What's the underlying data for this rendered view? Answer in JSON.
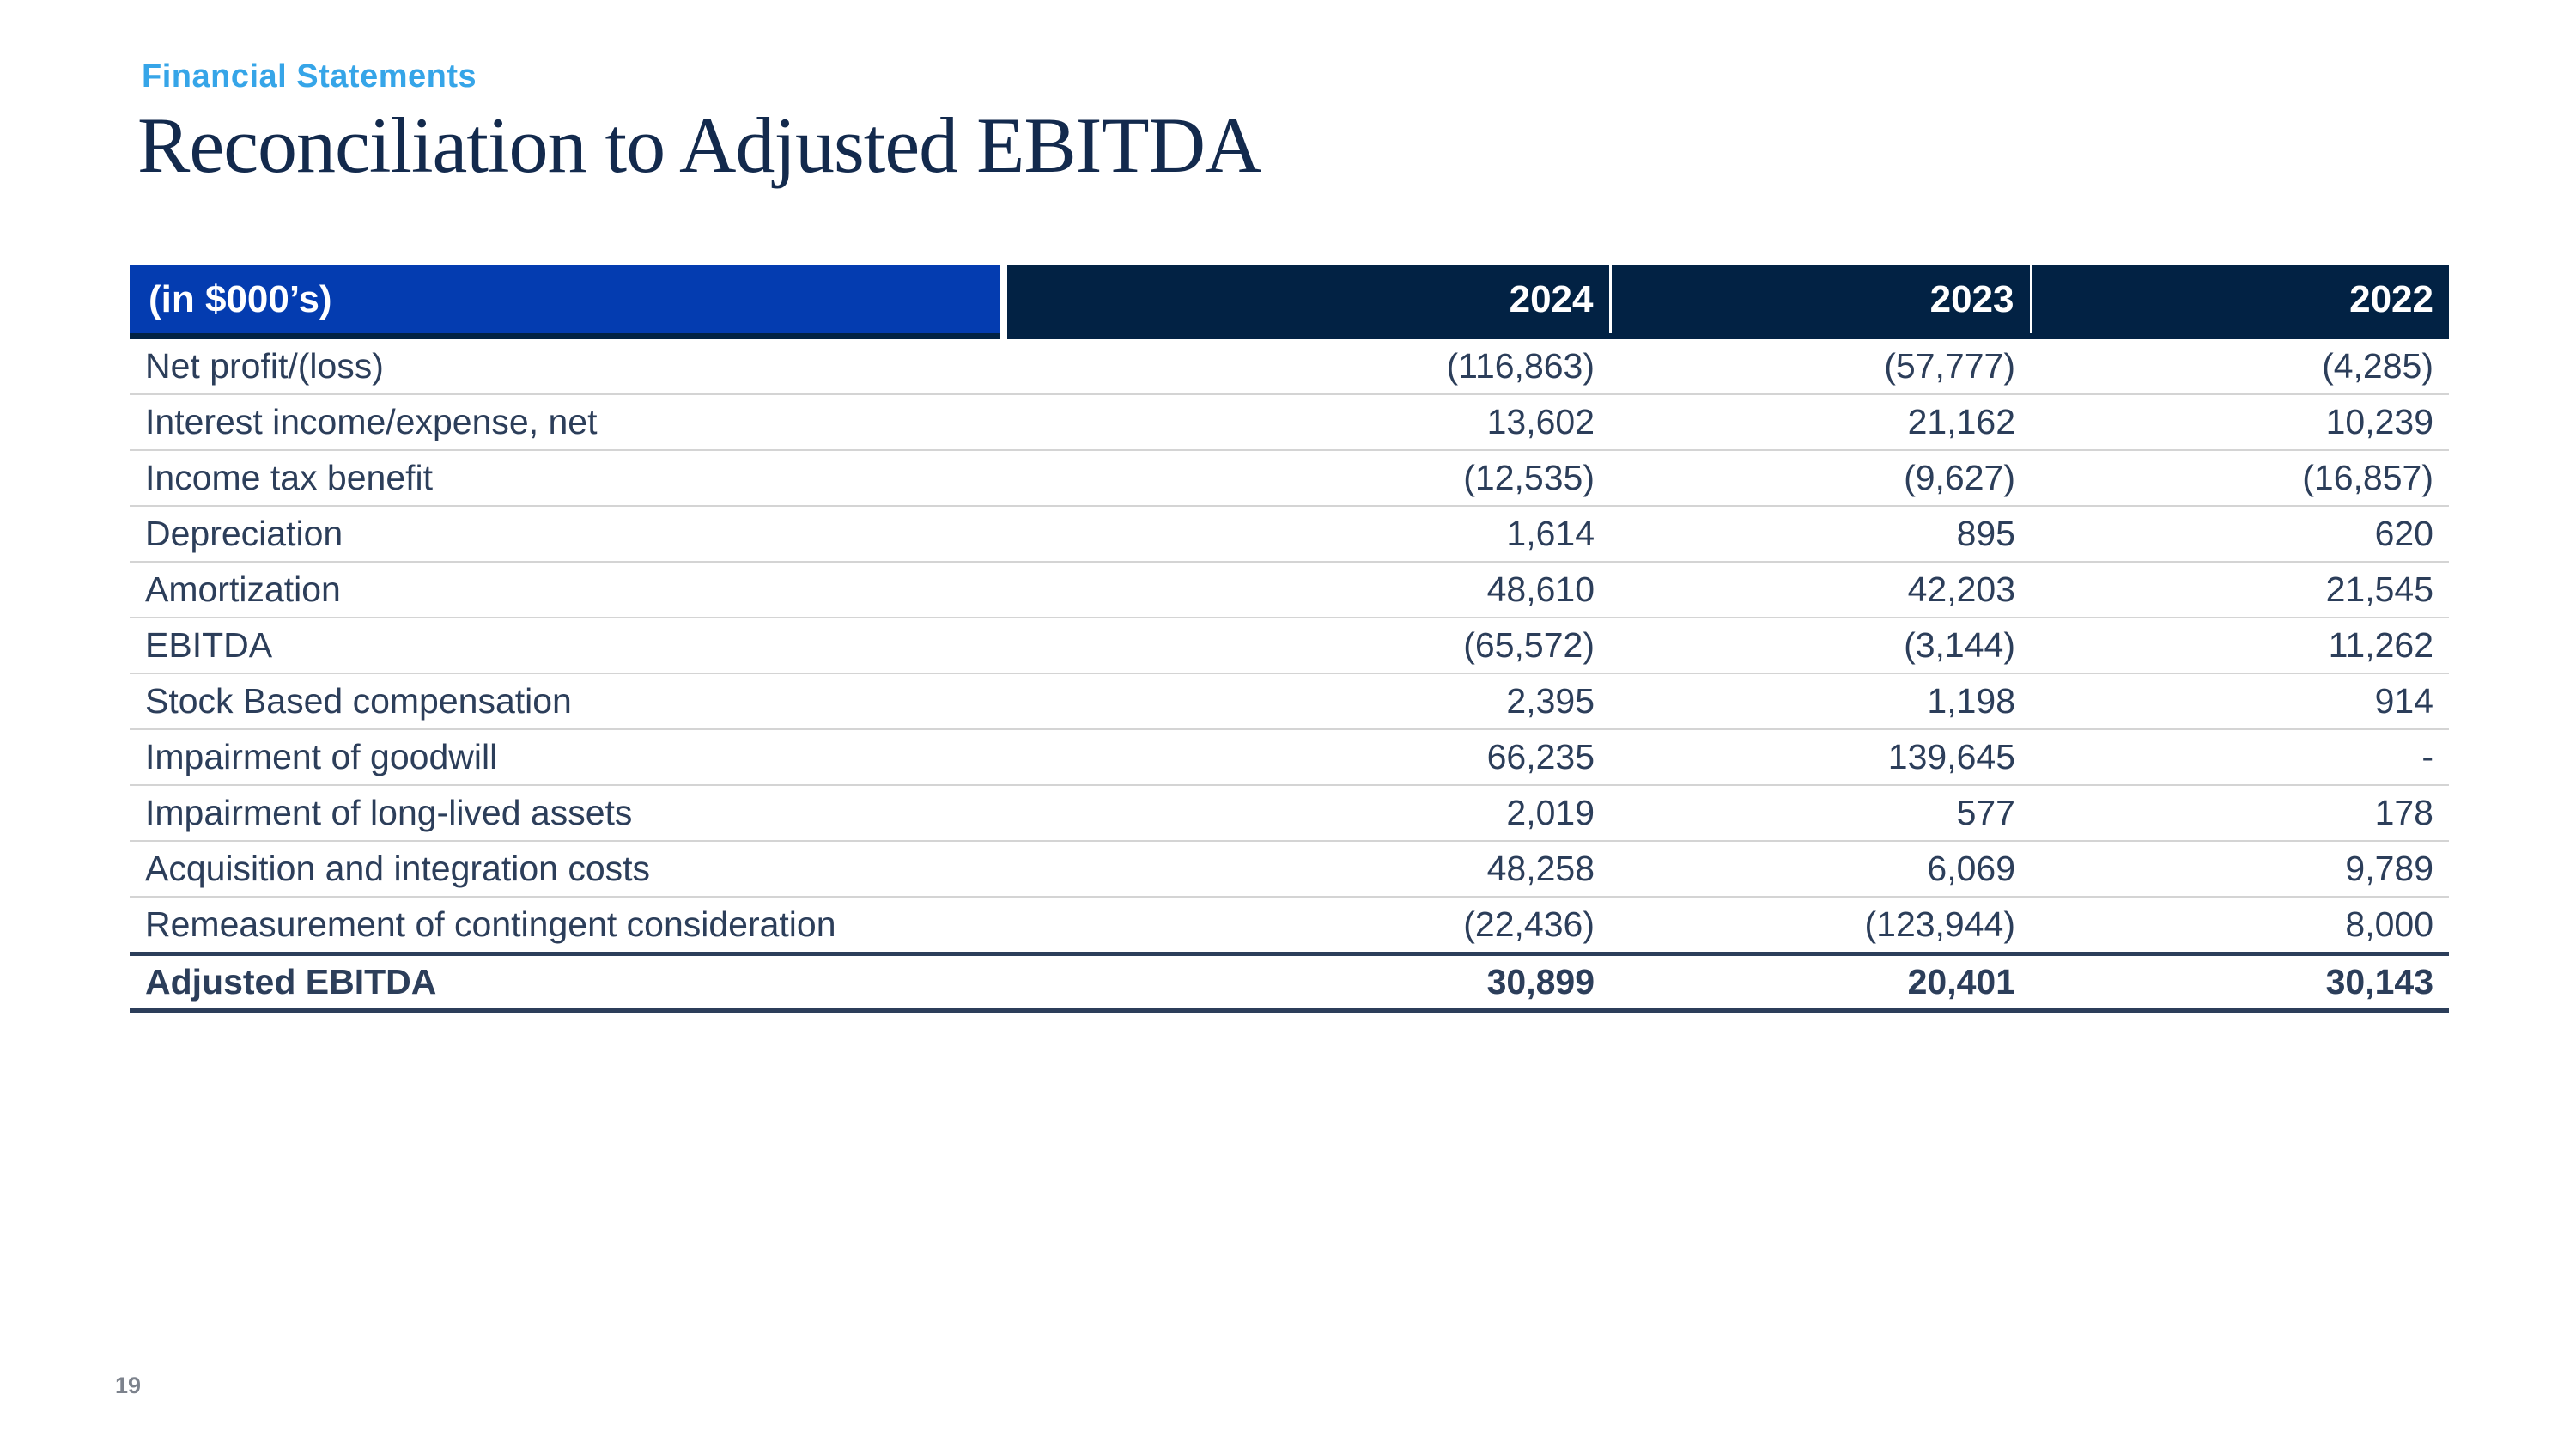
{
  "slide": {
    "eyebrow": "Financial Statements",
    "title": "Reconciliation to Adjusted EBITDA",
    "page_number": "19"
  },
  "table": {
    "unit_label": "(in $000’s)",
    "years": [
      "2024",
      "2023",
      "2022"
    ],
    "rows": [
      {
        "label": "Net profit/(loss)",
        "values": [
          "(116,863)",
          "(57,777)",
          "(4,285)"
        ]
      },
      {
        "label": "Interest income/expense, net",
        "values": [
          "13,602",
          "21,162",
          "10,239"
        ]
      },
      {
        "label": "Income tax benefit",
        "values": [
          "(12,535)",
          "(9,627)",
          "(16,857)"
        ]
      },
      {
        "label": "Depreciation",
        "values": [
          "1,614",
          "895",
          "620"
        ]
      },
      {
        "label": "Amortization",
        "values": [
          "48,610",
          "42,203",
          "21,545"
        ]
      },
      {
        "label": "EBITDA",
        "values": [
          "(65,572)",
          "(3,144)",
          "11,262"
        ]
      },
      {
        "label": "Stock Based compensation",
        "values": [
          "2,395",
          "1,198",
          "914"
        ]
      },
      {
        "label": "Impairment of goodwill",
        "values": [
          "66,235",
          "139,645",
          "-"
        ]
      },
      {
        "label": "Impairment of long-lived assets",
        "values": [
          "2,019",
          "577",
          "178"
        ]
      },
      {
        "label": "Acquisition and integration costs",
        "values": [
          "48,258",
          "6,069",
          "9,789"
        ]
      },
      {
        "label": "Remeasurement of contingent consideration",
        "values": [
          "(22,436)",
          "(123,944)",
          "8,000"
        ]
      }
    ],
    "total_row": {
      "label": "Adjusted EBITDA",
      "values": [
        "30,899",
        "20,401",
        "30,143"
      ]
    }
  },
  "colors": {
    "accent_blue": "#043CB0",
    "header_navy": "#022244",
    "eyebrow_blue": "#36A5E8",
    "title_navy": "#132A4D",
    "body_text": "#2C3E5A",
    "separator_gray": "#D4D4D4",
    "page_number_gray": "#7C828C"
  }
}
